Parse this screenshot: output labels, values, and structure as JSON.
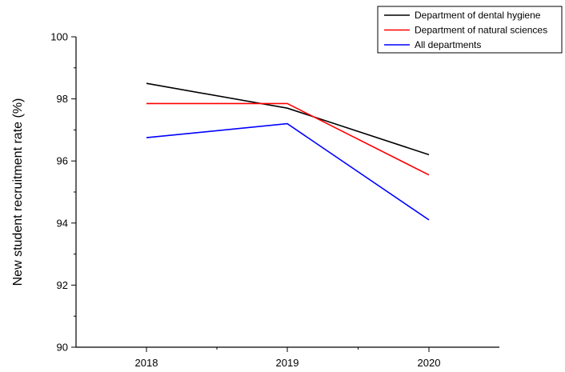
{
  "chart_data": {
    "type": "line",
    "title": "",
    "xlabel": "",
    "ylabel": "New student recruitment rate (%)",
    "categories": [
      "2018",
      "2019",
      "2020"
    ],
    "ylim": [
      90,
      100
    ],
    "yticks": [
      "90",
      "92",
      "94",
      "96",
      "98",
      "100"
    ],
    "grid": false,
    "legend_position": "top-right",
    "series": [
      {
        "name": "Department of dental hygiene",
        "color": "#000000",
        "values": [
          98.5,
          97.7,
          96.2
        ]
      },
      {
        "name": "Department of natural sciences",
        "color": "#ff0000",
        "values": [
          97.85,
          97.85,
          95.55
        ]
      },
      {
        "name": "All departments",
        "color": "#0000ff",
        "values": [
          96.75,
          97.2,
          94.1
        ]
      }
    ]
  }
}
